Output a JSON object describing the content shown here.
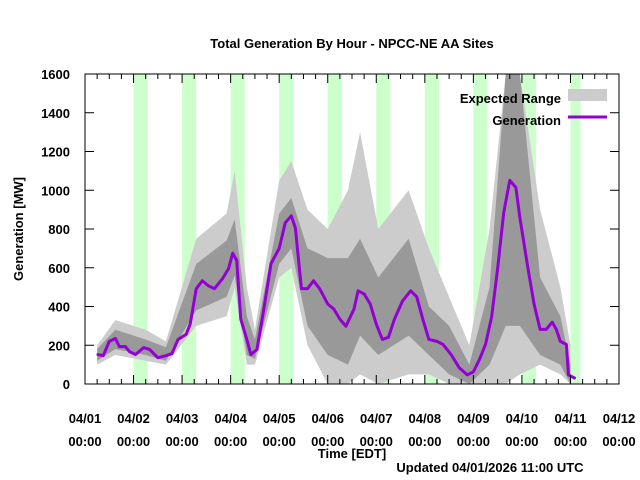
{
  "chart_data": {
    "type": "area",
    "title": "Total Generation By Hour - NPCC-NE AA Sites",
    "xlabel": "Time [EDT]",
    "ylabel": "Generation [MW]",
    "footer": "Updated 04/01/2026 11:00 UTC",
    "x_unit": "hours since 04/01 00:00",
    "xlim": [
      0,
      264
    ],
    "ylim": [
      0,
      1600
    ],
    "yticks": [
      0,
      200,
      400,
      600,
      800,
      1000,
      1200,
      1400,
      1600
    ],
    "xticks": [
      {
        "hour": 0,
        "date": "04/01",
        "time": "00:00"
      },
      {
        "hour": 24,
        "date": "04/02",
        "time": "00:00"
      },
      {
        "hour": 48,
        "date": "04/03",
        "time": "00:00"
      },
      {
        "hour": 72,
        "date": "04/04",
        "time": "00:00"
      },
      {
        "hour": 96,
        "date": "04/05",
        "time": "00:00"
      },
      {
        "hour": 120,
        "date": "04/06",
        "time": "00:00"
      },
      {
        "hour": 144,
        "date": "04/07",
        "time": "00:00"
      },
      {
        "hour": 168,
        "date": "04/08",
        "time": "00:00"
      },
      {
        "hour": 192,
        "date": "04/09",
        "time": "00:00"
      },
      {
        "hour": 216,
        "date": "04/10",
        "time": "00:00"
      },
      {
        "hour": 240,
        "date": "04/11",
        "time": "00:00"
      },
      {
        "hour": 264,
        "date": "04/12",
        "time": "00:00"
      }
    ],
    "night_bands": [
      [
        24,
        31
      ],
      [
        48,
        55
      ],
      [
        72,
        79
      ],
      [
        96,
        103
      ],
      [
        120,
        127
      ],
      [
        144,
        151
      ],
      [
        168,
        175
      ],
      [
        192,
        199
      ],
      [
        216,
        223
      ],
      [
        240,
        245
      ]
    ],
    "legend": {
      "placement": "top-right",
      "entries": [
        {
          "label": "Expected Range",
          "color": "#cccccc"
        },
        {
          "label": "Generation",
          "color": "#9400d3"
        }
      ]
    },
    "expected_range": {
      "hours": [
        6,
        15,
        30,
        40,
        55,
        70,
        74,
        80,
        84,
        96,
        102,
        110,
        120,
        130,
        136,
        145,
        160,
        170,
        180,
        190,
        200,
        208,
        215,
        225,
        235,
        240
      ],
      "outer_low": [
        100,
        150,
        120,
        100,
        300,
        350,
        500,
        100,
        100,
        550,
        600,
        200,
        0,
        0,
        50,
        0,
        50,
        50,
        0,
        0,
        0,
        0,
        50,
        100,
        50,
        0
      ],
      "outer_high": [
        200,
        330,
        280,
        220,
        750,
        880,
        1100,
        500,
        280,
        1050,
        1150,
        900,
        800,
        1000,
        1300,
        800,
        1000,
        700,
        450,
        200,
        800,
        1600,
        1600,
        900,
        500,
        200
      ],
      "inner_low": [
        120,
        180,
        150,
        120,
        380,
        450,
        560,
        150,
        130,
        620,
        700,
        300,
        150,
        100,
        250,
        150,
        250,
        150,
        50,
        0,
        100,
        300,
        300,
        150,
        100,
        0
      ],
      "inner_high": [
        180,
        280,
        230,
        190,
        620,
        740,
        850,
        350,
        230,
        880,
        960,
        700,
        650,
        650,
        750,
        550,
        750,
        400,
        300,
        100,
        500,
        1600,
        1600,
        550,
        350,
        100
      ]
    },
    "series": [
      {
        "name": "Generation",
        "color": "#9400d3",
        "hours": [
          6.4,
          9,
          12,
          15,
          17,
          20,
          22,
          25,
          29,
          32,
          36,
          40,
          43,
          46,
          50,
          52,
          55,
          58,
          61,
          64,
          68,
          71,
          73,
          75,
          77,
          80,
          82,
          85,
          88,
          92,
          96,
          99,
          102,
          104,
          107,
          110,
          113,
          116,
          120,
          123,
          126,
          129,
          133,
          135,
          138,
          141,
          144,
          147,
          150,
          153,
          157,
          161,
          164,
          167,
          170,
          174,
          177,
          181,
          185,
          189,
          192,
          195,
          198,
          201,
          204,
          207,
          210,
          213,
          215,
          219,
          222,
          225,
          228,
          231,
          233,
          235,
          238,
          239,
          242
        ],
        "values": [
          152,
          146,
          220,
          235,
          193,
          193,
          167,
          152,
          188,
          178,
          136,
          146,
          157,
          230,
          256,
          309,
          492,
          533,
          507,
          492,
          544,
          596,
          675,
          638,
          335,
          230,
          152,
          178,
          361,
          622,
          700,
          832,
          868,
          805,
          492,
          492,
          533,
          492,
          413,
          387,
          335,
          298,
          387,
          481,
          465,
          413,
          309,
          230,
          241,
          335,
          429,
          481,
          450,
          335,
          230,
          220,
          204,
          152,
          84,
          47,
          63,
          126,
          204,
          345,
          596,
          884,
          1051,
          1015,
          858,
          596,
          413,
          282,
          282,
          319,
          282,
          220,
          204,
          47,
          31
        ]
      }
    ]
  }
}
